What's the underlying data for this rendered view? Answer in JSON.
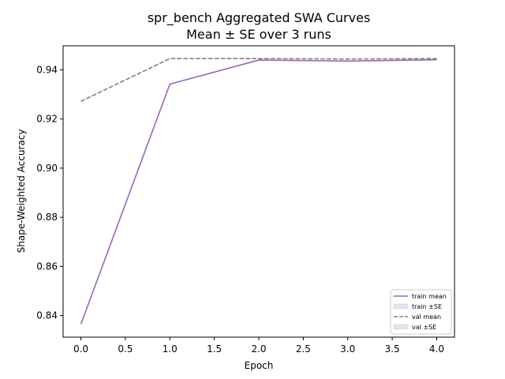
{
  "chart_data": {
    "type": "line",
    "title": "spr_bench Aggregated SWA Curves",
    "subtitle": "Mean ± SE over 3 runs",
    "xlabel": "Epoch",
    "ylabel": "Shape-Weighted Accuracy",
    "xlim": [
      -0.2,
      4.2
    ],
    "ylim": [
      0.8312,
      0.9498
    ],
    "xticks": [
      0.0,
      0.5,
      1.0,
      1.5,
      2.0,
      2.5,
      3.0,
      3.5,
      4.0
    ],
    "xtick_labels": [
      "0.0",
      "0.5",
      "1.0",
      "1.5",
      "2.0",
      "2.5",
      "3.0",
      "3.5",
      "4.0"
    ],
    "yticks": [
      0.84,
      0.86,
      0.88,
      0.9,
      0.92,
      0.94
    ],
    "ytick_labels": [
      "0.84",
      "0.86",
      "0.88",
      "0.90",
      "0.92",
      "0.94"
    ],
    "grid": false,
    "legend_position": "lower-right",
    "x": [
      0,
      1,
      2,
      3,
      4
    ],
    "series": [
      {
        "name": "train mean",
        "values": [
          0.8365,
          0.9342,
          0.944,
          0.9436,
          0.9441
        ],
        "color": "#9467bd",
        "style": "solid"
      },
      {
        "name": "val mean",
        "values": [
          0.9272,
          0.9446,
          0.9446,
          0.9444,
          0.9446
        ],
        "color": "#7f7f7f",
        "style": "dashed"
      }
    ],
    "bands": [
      {
        "name": "train ±SE",
        "lower": [
          0.8364,
          0.9341,
          0.9439,
          0.9435,
          0.944
        ],
        "upper": [
          0.8366,
          0.9343,
          0.9441,
          0.9437,
          0.9442
        ],
        "color": "#9467bd"
      },
      {
        "name": "val ±SE",
        "lower": [
          0.9271,
          0.9445,
          0.9445,
          0.9443,
          0.9445
        ],
        "upper": [
          0.9273,
          0.9447,
          0.9447,
          0.9445,
          0.9447
        ],
        "color": "#7f7f7f"
      }
    ],
    "legend": [
      "train mean",
      "train ±SE",
      "val mean",
      "val ±SE"
    ]
  }
}
